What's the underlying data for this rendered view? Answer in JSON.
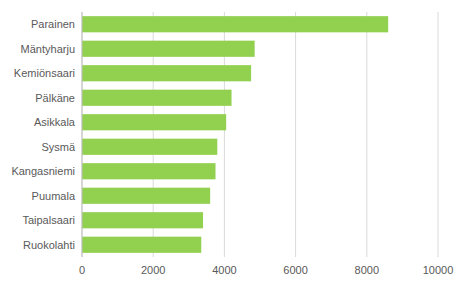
{
  "chart_data": {
    "type": "bar",
    "orientation": "horizontal",
    "categories": [
      "Parainen",
      "Mäntyharju",
      "Kemiönsaari",
      "Pälkäne",
      "Asikkala",
      "Sysmä",
      "Kangasniemi",
      "Puumala",
      "Taipalsaari",
      "Ruokolahti"
    ],
    "values": [
      8600,
      4850,
      4750,
      4200,
      4050,
      3800,
      3750,
      3600,
      3400,
      3350
    ],
    "color": "#92d050",
    "xlim": [
      0,
      10000
    ],
    "xticks": [
      0,
      2000,
      4000,
      6000,
      8000,
      10000
    ],
    "grid": true
  }
}
